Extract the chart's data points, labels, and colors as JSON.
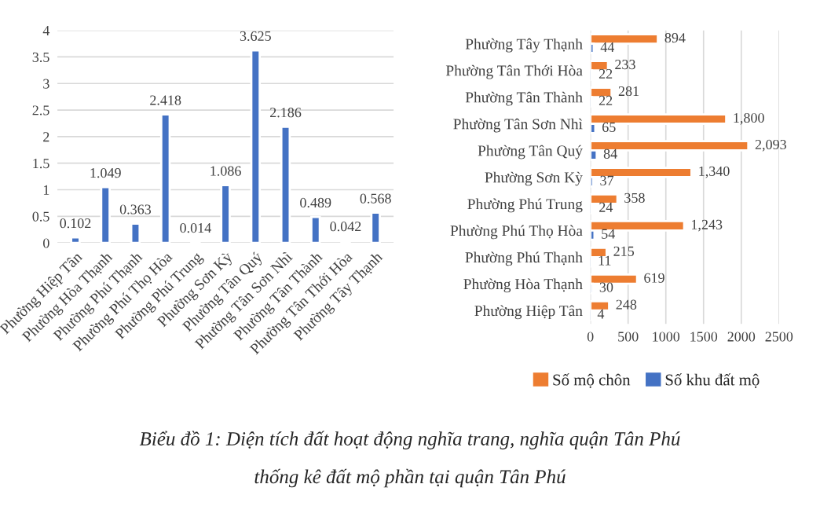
{
  "chart_data": [
    {
      "type": "bar",
      "categories": [
        "Phường Hiệp Tân",
        "Phường Hòa Thạnh",
        "Phường Phú Thạnh",
        "Phường Phú Thọ Hòa",
        "Phường Phú Trung",
        "Phường Sơn Kỳ",
        "Phường Tân Quý",
        "Phường Tân Sơn Nhì",
        "Phường Tân Thành",
        "Phường Tân Thới Hòa",
        "Phường Tây Thạnh"
      ],
      "values": [
        0.102,
        1.049,
        0.363,
        2.418,
        0.014,
        1.086,
        3.625,
        2.186,
        0.489,
        0.042,
        0.568
      ],
      "color": "#4472c4",
      "ylim": [
        0,
        4
      ],
      "yticks": [
        0,
        0.5,
        1,
        1.5,
        2,
        2.5,
        3,
        3.5,
        4
      ],
      "grid": "y",
      "data_labels": true,
      "annotations": [
        "Biểu đồ 1: Diện tích đất hoạt động nghĩa trang, nghĩa quận Tân Phú",
        "thống kê đất mộ phần tại quận Tân Phú"
      ]
    },
    {
      "type": "bar",
      "orientation": "horizontal",
      "categories": [
        "Phường Tây Thạnh",
        "Phường Tân Thới Hòa",
        "Phường Tân Thành",
        "Phường Tân Sơn Nhì",
        "Phường Tân Quý",
        "Phường Sơn Kỳ",
        "Phường Phú Trung",
        "Phường Phú Thọ Hòa",
        "Phường Phú Thạnh",
        "Phường Hòa Thạnh",
        "Phường Hiệp Tân"
      ],
      "series": [
        {
          "name": "Số mộ chôn",
          "color": "#ed7d31",
          "values": [
            894,
            233,
            281,
            1800,
            2093,
            1340,
            358,
            1243,
            215,
            619,
            248
          ],
          "value_labels": [
            "894",
            "233",
            "281",
            "1,800",
            "2,093",
            "1,340",
            "358",
            "1,243",
            "215",
            "619",
            "248"
          ]
        },
        {
          "name": "Số khu đất mộ",
          "color": "#4472c4",
          "values": [
            44,
            22,
            22,
            65,
            84,
            37,
            24,
            54,
            11,
            30,
            4
          ],
          "value_labels": [
            "44",
            "22",
            "22",
            "65",
            "84",
            "37",
            "24",
            "54",
            "11",
            "30",
            "4"
          ]
        }
      ],
      "xlim": [
        0,
        2500
      ],
      "xticks": [
        0,
        500,
        1000,
        1500,
        2000,
        2500
      ],
      "grid": "x",
      "legend": "bottom"
    }
  ]
}
